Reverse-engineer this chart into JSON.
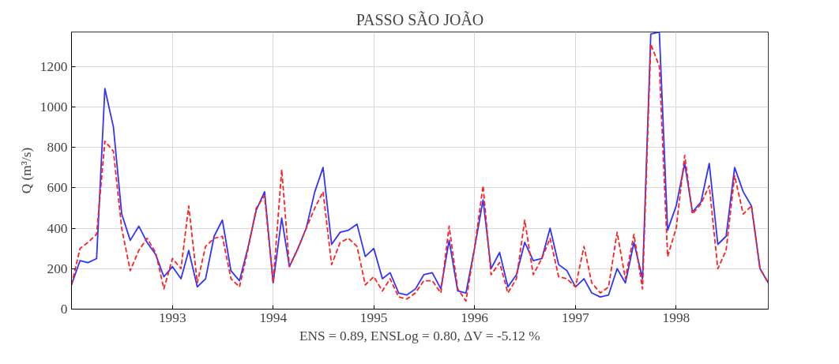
{
  "chart_data": {
    "type": "line",
    "title": "PASSO SÃO JOÃO",
    "ylabel": "Q (m³/s)",
    "xlabel": "ENS = 0.89, ENSLog = 0.80, ΔV = -5.12 %",
    "x": [
      "1992-01",
      "1992-02",
      "1992-03",
      "1992-04",
      "1992-05",
      "1992-06",
      "1992-07",
      "1992-08",
      "1992-09",
      "1992-10",
      "1992-11",
      "1992-12",
      "1993-01",
      "1993-02",
      "1993-03",
      "1993-04",
      "1993-05",
      "1993-06",
      "1993-07",
      "1993-08",
      "1993-09",
      "1993-10",
      "1993-11",
      "1993-12",
      "1994-01",
      "1994-02",
      "1994-03",
      "1994-04",
      "1994-05",
      "1994-06",
      "1994-07",
      "1994-08",
      "1994-09",
      "1994-10",
      "1994-11",
      "1994-12",
      "1995-01",
      "1995-02",
      "1995-03",
      "1995-04",
      "1995-05",
      "1995-06",
      "1995-07",
      "1995-08",
      "1995-09",
      "1995-10",
      "1995-11",
      "1995-12",
      "1996-01",
      "1996-02",
      "1996-03",
      "1996-04",
      "1996-05",
      "1996-06",
      "1996-07",
      "1996-08",
      "1996-09",
      "1996-10",
      "1996-11",
      "1996-12",
      "1997-01",
      "1997-02",
      "1997-03",
      "1997-04",
      "1997-05",
      "1997-06",
      "1997-07",
      "1997-08",
      "1997-09",
      "1997-10",
      "1997-11",
      "1997-12",
      "1998-01",
      "1998-02",
      "1998-03",
      "1998-04",
      "1998-05",
      "1998-06",
      "1998-07",
      "1998-08",
      "1998-09",
      "1998-10",
      "1998-11",
      "1998-12"
    ],
    "series": [
      {
        "color": "#3333ff",
        "line_style": "solid",
        "values": [
          120,
          240,
          230,
          250,
          1090,
          900,
          470,
          340,
          410,
          330,
          270,
          160,
          210,
          150,
          290,
          110,
          150,
          360,
          440,
          190,
          140,
          300,
          490,
          580,
          130,
          450,
          210,
          300,
          400,
          580,
          700,
          320,
          380,
          390,
          420,
          260,
          300,
          150,
          180,
          80,
          70,
          100,
          170,
          180,
          100,
          340,
          90,
          80,
          300,
          540,
          200,
          280,
          110,
          170,
          330,
          240,
          250,
          400,
          220,
          190,
          110,
          150,
          80,
          60,
          70,
          200,
          130,
          330,
          150,
          1360,
          1370,
          390,
          510,
          720,
          480,
          530,
          720,
          320,
          360,
          700,
          580,
          510,
          200,
          130
        ]
      },
      {
        "color": "#ff2020",
        "line_style": "dashed",
        "values": [
          120,
          300,
          330,
          370,
          830,
          780,
          400,
          190,
          290,
          350,
          280,
          100,
          250,
          200,
          510,
          130,
          310,
          350,
          360,
          150,
          110,
          290,
          500,
          560,
          130,
          690,
          210,
          300,
          400,
          500,
          580,
          220,
          330,
          350,
          310,
          120,
          160,
          90,
          150,
          60,
          50,
          80,
          140,
          140,
          80,
          410,
          100,
          40,
          300,
          610,
          170,
          230,
          80,
          150,
          440,
          170,
          250,
          350,
          160,
          150,
          110,
          310,
          130,
          80,
          110,
          380,
          150,
          370,
          100,
          1310,
          1200,
          260,
          400,
          760,
          470,
          520,
          610,
          200,
          290,
          660,
          470,
          510,
          200,
          130
        ]
      }
    ],
    "xlim": [
      "1992-01",
      "1998-12"
    ],
    "ylim": [
      0,
      1370
    ],
    "yticks": [
      0,
      200,
      400,
      600,
      800,
      1000,
      1200
    ],
    "xticks": [
      {
        "value": "1993-01",
        "label": "1993"
      },
      {
        "value": "1994-01",
        "label": "1994"
      },
      {
        "value": "1995-01",
        "label": "1995"
      },
      {
        "value": "1996-01",
        "label": "1996"
      },
      {
        "value": "1997-01",
        "label": "1997"
      },
      {
        "value": "1998-01",
        "label": "1998"
      }
    ],
    "grid": true
  }
}
